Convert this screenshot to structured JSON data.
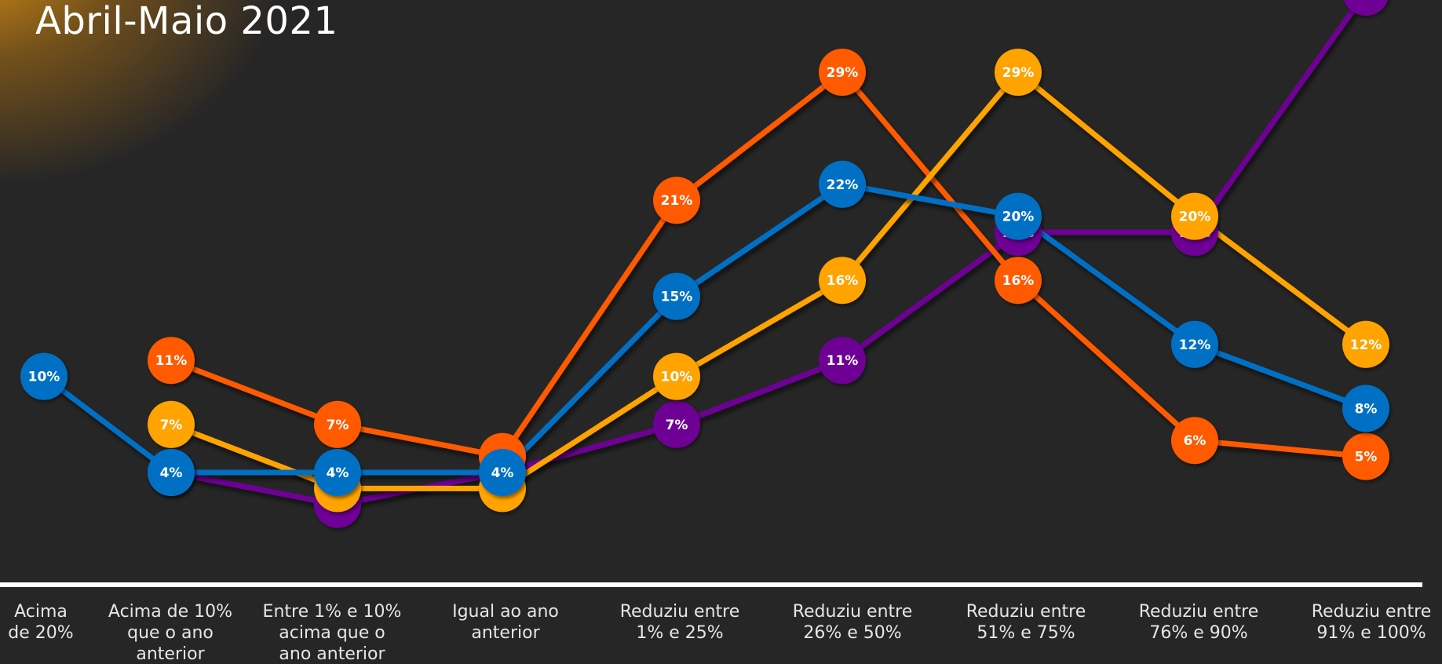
{
  "chart": {
    "title": "Abril-Maio 2021"
  },
  "colors": {
    "background": "#262626",
    "axis": "#ffffff",
    "orange": "#FF5A00",
    "yellow": "#FFA300",
    "blue": "#006FC5",
    "purple": "#6E0096",
    "label_text": "#ffffff",
    "category_text": "#e6e6e6"
  },
  "chart_data": {
    "type": "line",
    "title": "Abril-Maio 2021",
    "xlabel": "",
    "ylabel": "",
    "categories": [
      "Acima de 20%",
      "Acima de 10% que o ano anterior",
      "Entre 1% e 10% acima que o ano anterior",
      "Igual ao ano anterior",
      "Reduziu entre 1% e 25%",
      "Reduziu entre 26% e 50%",
      "Reduziu entre 51% e 75%",
      "Reduziu entre 76% e 90%",
      "Reduziu entre 91% e 100%"
    ],
    "category_lines": [
      [
        "Acima",
        "de 20%"
      ],
      [
        "Acima de 10%",
        "que o ano",
        "anterior"
      ],
      [
        "Entre 1% e 10%",
        "acima que o",
        "ano anterior"
      ],
      [
        "Igual ao ano",
        "anterior"
      ],
      [
        "Reduziu entre",
        "1% e 25%"
      ],
      [
        "Reduziu entre",
        "26% e 50%"
      ],
      [
        "Reduziu entre",
        "51% e 75%"
      ],
      [
        "Reduziu entre",
        "76% e 90%"
      ],
      [
        "Reduziu entre",
        "91% e 100%"
      ]
    ],
    "ylim": [
      0,
      36
    ],
    "grid": false,
    "legend": "none",
    "series": [
      {
        "color": "#6E0096",
        "values": [
          null,
          4,
          2,
          4,
          7,
          11,
          19,
          19,
          34
        ],
        "labels": [
          null,
          "",
          "2%",
          "",
          "7%",
          "11%",
          "19%",
          "19%",
          "34%"
        ]
      },
      {
        "color": "#FF5A00",
        "values": [
          null,
          11,
          7,
          5,
          21,
          29,
          16,
          6,
          5
        ],
        "labels": [
          null,
          "11%",
          "7%",
          "",
          "21%",
          "29%",
          "16%",
          "6%",
          "5%"
        ]
      },
      {
        "color": "#FFA300",
        "values": [
          null,
          7,
          3,
          3,
          10,
          16,
          29,
          20,
          12
        ],
        "labels": [
          null,
          "7%",
          "",
          "",
          "10%",
          "16%",
          "29%",
          "20%",
          "12%"
        ]
      },
      {
        "color": "#006FC5",
        "values": [
          10,
          4,
          4,
          4,
          15,
          22,
          20,
          12,
          8
        ],
        "labels": [
          "10%",
          "4%",
          "4%",
          "4%",
          "15%",
          "22%",
          "20%",
          "12%",
          "8%"
        ]
      }
    ]
  }
}
